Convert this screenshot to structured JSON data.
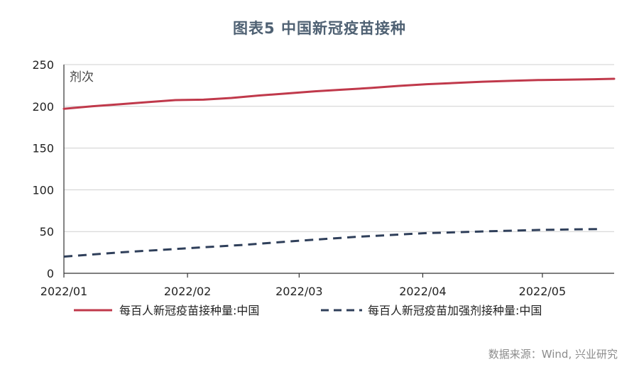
{
  "title": "图表5  中国新冠疫苗接种",
  "source": "数据来源：Wind, 兴业研究",
  "colors": {
    "series1": "#c0394b",
    "series2": "#2f3f5a",
    "grid": "#cfcfcf",
    "axis": "#333333",
    "title": "#4f6173"
  },
  "chart_data": {
    "type": "line",
    "title": "图表5  中国新冠疫苗接种",
    "ylabel": "剂次",
    "xlabel": "",
    "ylim": [
      0,
      250
    ],
    "yticks": [
      0,
      50,
      100,
      150,
      200,
      250
    ],
    "grid": true,
    "legend_position": "bottom",
    "xlim": [
      "2022-01-01",
      "2022-05-19"
    ],
    "xticks": [
      {
        "date": "2022-01-01",
        "label": "2022/01"
      },
      {
        "date": "2022-02-01",
        "label": "2022/02"
      },
      {
        "date": "2022-03-01",
        "label": "2022/03"
      },
      {
        "date": "2022-04-01",
        "label": "2022/04"
      },
      {
        "date": "2022-05-01",
        "label": "2022/05"
      }
    ],
    "series": [
      {
        "name": "每百人新冠疫苗接种量:中国",
        "style": "solid",
        "points": [
          [
            "2022-01-01",
            197
          ],
          [
            "2022-01-08",
            200
          ],
          [
            "2022-01-15",
            202.5
          ],
          [
            "2022-01-22",
            205
          ],
          [
            "2022-01-29",
            207.5
          ],
          [
            "2022-02-05",
            208
          ],
          [
            "2022-02-12",
            210
          ],
          [
            "2022-02-19",
            213
          ],
          [
            "2022-02-26",
            215.5
          ],
          [
            "2022-03-05",
            218
          ],
          [
            "2022-03-12",
            220
          ],
          [
            "2022-03-19",
            222
          ],
          [
            "2022-03-26",
            224.5
          ],
          [
            "2022-04-02",
            226.5
          ],
          [
            "2022-04-09",
            228
          ],
          [
            "2022-04-16",
            229.5
          ],
          [
            "2022-04-23",
            230.5
          ],
          [
            "2022-04-30",
            231.5
          ],
          [
            "2022-05-07",
            232
          ],
          [
            "2022-05-14",
            232.5
          ],
          [
            "2022-05-19",
            233
          ]
        ]
      },
      {
        "name": "每百人新冠疫苗加强剂接种量:中国",
        "style": "dashed",
        "points": [
          [
            "2022-01-01",
            20
          ],
          [
            "2022-01-15",
            25
          ],
          [
            "2022-02-01",
            30
          ],
          [
            "2022-02-15",
            34
          ],
          [
            "2022-03-01",
            39
          ],
          [
            "2022-03-15",
            43.5
          ],
          [
            "2022-04-01",
            48
          ],
          [
            "2022-04-15",
            50
          ],
          [
            "2022-05-01",
            52
          ],
          [
            "2022-05-15",
            53
          ]
        ]
      }
    ]
  }
}
